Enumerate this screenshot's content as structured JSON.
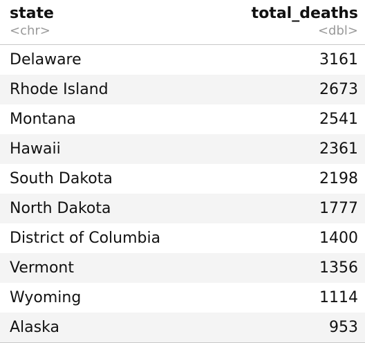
{
  "columns": [
    {
      "name": "state",
      "type": "<chr>"
    },
    {
      "name": "total_deaths",
      "type": "<dbl>"
    }
  ],
  "rows": [
    {
      "state": "Delaware",
      "total_deaths": "3161"
    },
    {
      "state": "Rhode Island",
      "total_deaths": "2673"
    },
    {
      "state": "Montana",
      "total_deaths": "2541"
    },
    {
      "state": "Hawaii",
      "total_deaths": "2361"
    },
    {
      "state": "South Dakota",
      "total_deaths": "2198"
    },
    {
      "state": "North Dakota",
      "total_deaths": "1777"
    },
    {
      "state": "District of Columbia",
      "total_deaths": "1400"
    },
    {
      "state": "Vermont",
      "total_deaths": "1356"
    },
    {
      "state": "Wyoming",
      "total_deaths": "1114"
    },
    {
      "state": "Alaska",
      "total_deaths": "953"
    }
  ]
}
